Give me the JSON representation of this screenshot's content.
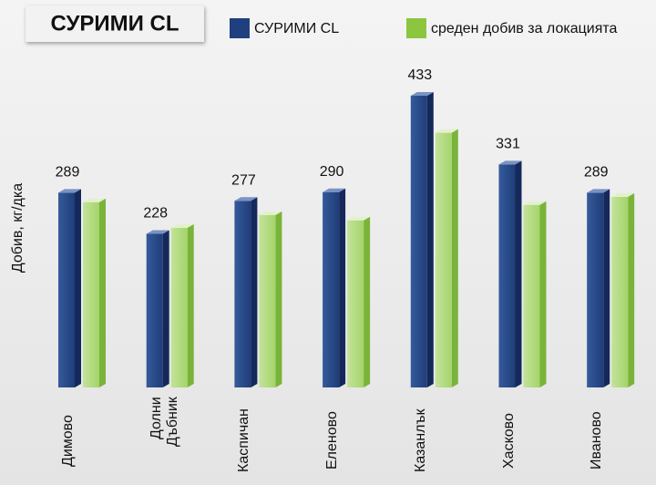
{
  "chart_data": {
    "type": "bar3d",
    "title": "СУРИМИ CL",
    "y_label": "Добив, кг/дка",
    "categories": [
      "Димово",
      "Долни Дъбник",
      "Каспичан",
      "Еленово",
      "Казанлък",
      "Хасково",
      "Иваново"
    ],
    "series": [
      {
        "name": "СУРИМИ CL",
        "color": "#1f3f7f",
        "values": [
          289,
          228,
          277,
          290,
          433,
          331,
          289
        ],
        "show_values": true
      },
      {
        "name": "среден добив за локацията",
        "color": "#8cc63f",
        "values": [
          275,
          237,
          256,
          248,
          378,
          271,
          283
        ],
        "show_values": false
      }
    ],
    "legend": "top"
  }
}
